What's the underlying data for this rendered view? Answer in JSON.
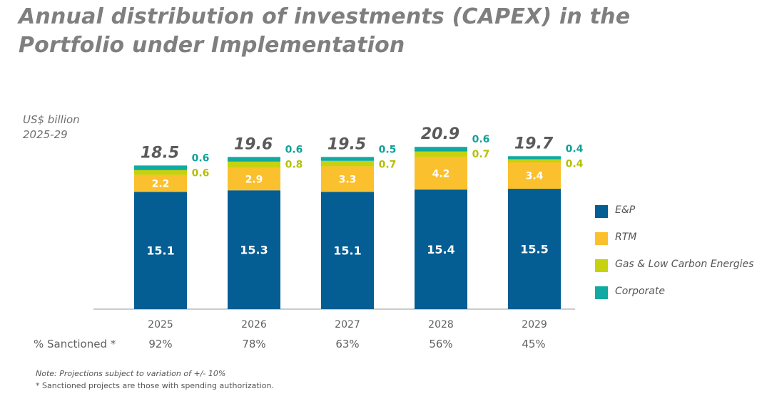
{
  "title_line1": "Annual distribution of investments (CAPEX) in the",
  "title_line2": "Portfolio under Implementation",
  "unit_line1": "US$ billion",
  "unit_line2": "2025-29",
  "sanctioned_label": "% Sanctioned *",
  "sanctioned": [
    "92%",
    "78%",
    "63%",
    "56%",
    "45%"
  ],
  "legend": [
    {
      "label": "E&P",
      "color": "#045d93"
    },
    {
      "label": "RTM",
      "color": "#fbc02d"
    },
    {
      "label": "Gas & Low Carbon Energies",
      "color": "#c6d20e"
    },
    {
      "label": "Corporate",
      "color": "#10aaa2"
    }
  ],
  "notes": {
    "line1": "Note: Projections subject to variation of +/- 10%",
    "line2": "* Sanctioned projects are those with spending authorization."
  },
  "chart_data": {
    "type": "bar",
    "stacked": true,
    "categories": [
      "2025",
      "2026",
      "2027",
      "2028",
      "2029"
    ],
    "series": [
      {
        "name": "E&P",
        "color": "#045d93",
        "values": [
          15.1,
          15.3,
          15.1,
          15.4,
          15.5
        ],
        "labels": [
          "15.1",
          "15.3",
          "15.1",
          "15.4",
          "15.5"
        ],
        "label_color": "#ffffff"
      },
      {
        "name": "RTM",
        "color": "#fbc02d",
        "values": [
          2.2,
          2.9,
          3.3,
          4.2,
          3.4
        ],
        "labels": [
          "2.2",
          "2.9",
          "3.3",
          "4.2",
          "3.4"
        ],
        "label_color": "#ffffff"
      },
      {
        "name": "Gas & Low Carbon Energies",
        "color": "#c6d20e",
        "values": [
          0.6,
          0.8,
          0.7,
          0.7,
          0.4
        ],
        "labels": [
          "0.6",
          "0.8",
          "0.7",
          "0.7",
          "0.4"
        ],
        "label_color": "#b5bf05"
      },
      {
        "name": "Corporate",
        "color": "#10aaa2",
        "values": [
          0.6,
          0.6,
          0.5,
          0.6,
          0.4
        ],
        "labels": [
          "0.6",
          "0.6",
          "0.5",
          "0.6",
          "0.4"
        ],
        "label_color": "#10a19a"
      }
    ],
    "totals": [
      "18.5",
      "19.6",
      "19.5",
      "20.9",
      "19.7"
    ],
    "ylabel": "US$ billion",
    "ylim": [
      0,
      25
    ],
    "grid": false,
    "legend_position": "right"
  }
}
